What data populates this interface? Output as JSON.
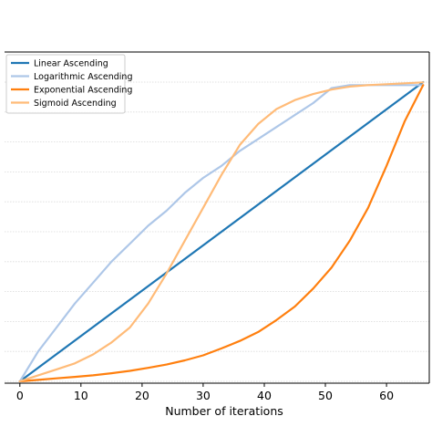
{
  "chart_data": {
    "type": "line",
    "title": "",
    "xlabel": "Number of iterations",
    "ylabel": "",
    "xlim": [
      -2.5,
      67
    ],
    "ylim": [
      0,
      1
    ],
    "x_ticks": [
      0,
      10,
      20,
      30,
      40,
      50,
      60
    ],
    "x_tick_labels": [
      "0",
      "10",
      "20",
      "30",
      "40",
      "50",
      "60"
    ],
    "grid": "horizontal dotted",
    "legend_position": "top-left",
    "series": [
      {
        "name": "Linear Ascending",
        "color": "#1f77b4",
        "x": [
          0,
          66
        ],
        "y": [
          0,
          1
        ]
      },
      {
        "name": "Logarithmic Ascending",
        "color": "#aec7e8",
        "x": [
          0,
          3,
          6,
          9,
          12,
          15,
          18,
          21,
          24,
          27,
          30,
          33,
          36,
          39,
          42,
          45,
          48,
          51,
          54,
          57,
          60,
          63,
          66
        ],
        "y": [
          0,
          0.1,
          0.18,
          0.26,
          0.33,
          0.4,
          0.46,
          0.52,
          0.57,
          0.63,
          0.68,
          0.72,
          0.77,
          0.81,
          0.85,
          0.89,
          0.93,
          0.98,
          0.99,
          0.99,
          0.99,
          0.99,
          0.99
        ]
      },
      {
        "name": "Exponential Ascending",
        "color": "#ff7f0e",
        "x": [
          0,
          3,
          6,
          9,
          12,
          15,
          18,
          21,
          24,
          27,
          30,
          33,
          36,
          39,
          42,
          45,
          48,
          51,
          54,
          57,
          60,
          63,
          66
        ],
        "y": [
          0,
          0.005,
          0.01,
          0.015,
          0.02,
          0.027,
          0.035,
          0.045,
          0.056,
          0.07,
          0.087,
          0.11,
          0.135,
          0.165,
          0.205,
          0.25,
          0.31,
          0.38,
          0.47,
          0.58,
          0.72,
          0.87,
          0.99
        ]
      },
      {
        "name": "Sigmoid Ascending",
        "color": "#ffbb78",
        "x": [
          0,
          3,
          6,
          9,
          12,
          15,
          18,
          21,
          24,
          27,
          30,
          33,
          36,
          39,
          42,
          45,
          48,
          51,
          54,
          57,
          60,
          63,
          66
        ],
        "y": [
          0,
          0.02,
          0.04,
          0.06,
          0.09,
          0.13,
          0.18,
          0.26,
          0.36,
          0.47,
          0.58,
          0.69,
          0.79,
          0.86,
          0.91,
          0.94,
          0.96,
          0.975,
          0.985,
          0.99,
          0.993,
          0.996,
          0.999
        ]
      }
    ]
  }
}
